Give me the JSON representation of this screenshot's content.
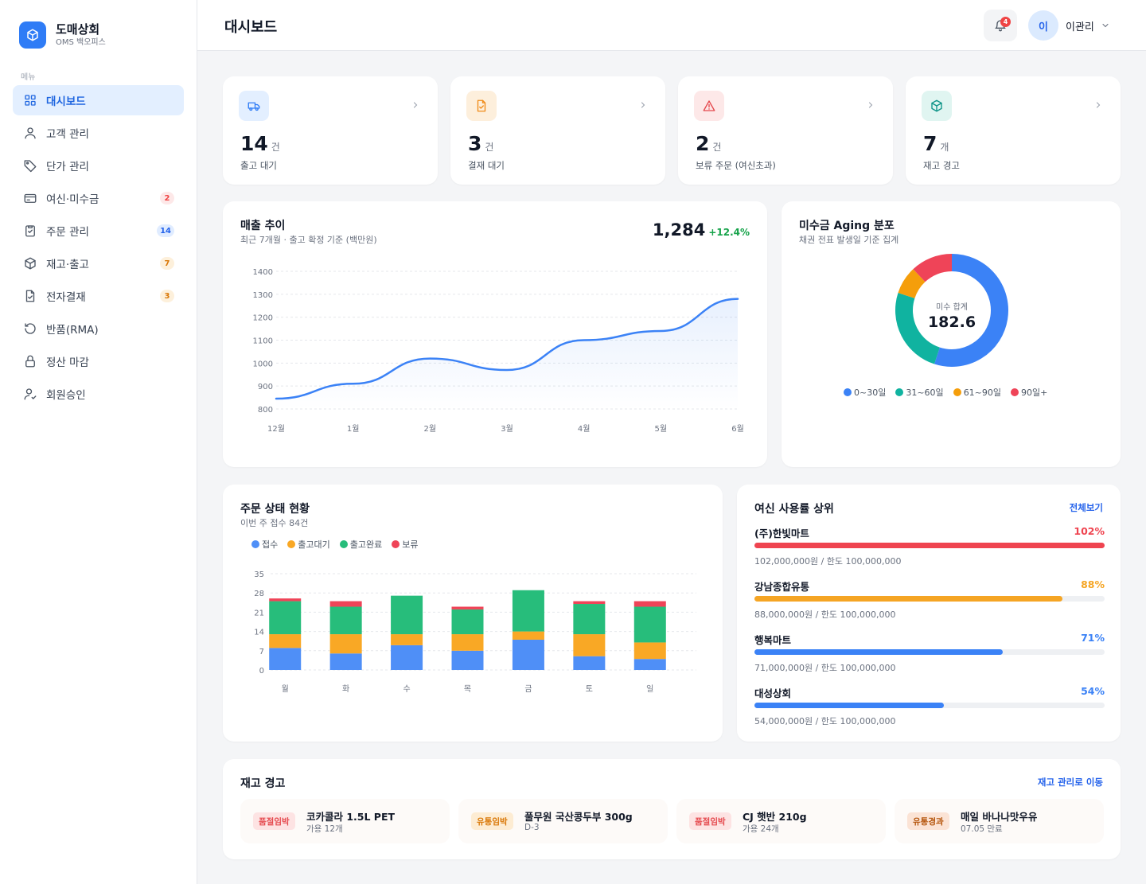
{
  "brand": {
    "name": "도매상회",
    "sub": "OMS 백오피스"
  },
  "sidebar": {
    "menu_label": "메뉴",
    "items": [
      {
        "label": "대시보드",
        "icon": "grid-icon",
        "active": true,
        "badge": ""
      },
      {
        "label": "고객 관리",
        "icon": "user-icon",
        "badge": ""
      },
      {
        "label": "단가 관리",
        "icon": "tag-icon",
        "badge": ""
      },
      {
        "label": "여신·미수금",
        "icon": "card-icon",
        "badge": "2",
        "badge_color": "#ef4444",
        "badge_bg": "#fde8e8"
      },
      {
        "label": "주문 관리",
        "icon": "clipboard-check-icon",
        "badge": "14",
        "badge_color": "#2563eb",
        "badge_bg": "#e0ecff"
      },
      {
        "label": "재고·출고",
        "icon": "box-icon",
        "badge": "7",
        "badge_color": "#d97706",
        "badge_bg": "#fdf0db"
      },
      {
        "label": "전자결재",
        "icon": "document-check-icon",
        "badge": "3",
        "badge_color": "#d97706",
        "badge_bg": "#fdf0db"
      },
      {
        "label": "반품(RMA)",
        "icon": "rotate-icon",
        "badge": ""
      },
      {
        "label": "정산 마감",
        "icon": "lock-icon",
        "badge": ""
      },
      {
        "label": "회원승인",
        "icon": "user-check-icon",
        "badge": ""
      }
    ]
  },
  "header": {
    "title": "대시보드",
    "notification_count": "4",
    "user_initial": "이",
    "user_name": "이관리"
  },
  "stats": [
    {
      "value": "14",
      "unit": "건",
      "label": "출고 대기",
      "icon": "truck-icon",
      "color": "#2f7cf6",
      "bg": "#e3efff"
    },
    {
      "value": "3",
      "unit": "건",
      "label": "결재 대기",
      "icon": "document-check-icon",
      "color": "#f08c1a",
      "bg": "#fdefdc"
    },
    {
      "value": "2",
      "unit": "건",
      "label": "보류 주문 (여신초과)",
      "icon": "warning-icon",
      "color": "#e5484d",
      "bg": "#fde8e8"
    },
    {
      "value": "7",
      "unit": "개",
      "label": "재고 경고",
      "icon": "box-icon",
      "color": "#0d9488",
      "bg": "#e0f5f1"
    }
  ],
  "sales": {
    "title": "매출 추이",
    "sub": "최근 7개월 · 출고 확정 기준 (백만원)",
    "total": "1,284",
    "change": "+12.4%",
    "change_color": "#16a34a"
  },
  "aging": {
    "title": "미수금 Aging 분포",
    "sub": "채권 전표 발생일 기준 집계",
    "center_label": "미수 합계",
    "center_value": "182.6"
  },
  "orders": {
    "title": "주문 상태 현황",
    "sub": "이번 주 접수 84건"
  },
  "credit": {
    "title": "여신 사용률 상위",
    "link": "전체보기",
    "rows": [
      {
        "name": "(주)한빛마트",
        "pct": "102%",
        "ratio": 1.0,
        "detail": "102,000,000원 / 한도 100,000,000",
        "color": "#ef4450"
      },
      {
        "name": "강남종합유통",
        "pct": "88%",
        "ratio": 0.88,
        "detail": "88,000,000원 / 한도 100,000,000",
        "color": "#f5a524"
      },
      {
        "name": "행복마트",
        "pct": "71%",
        "ratio": 0.71,
        "detail": "71,000,000원 / 한도 100,000,000",
        "color": "#3b82f6"
      },
      {
        "name": "대성상회",
        "pct": "54%",
        "ratio": 0.54,
        "detail": "54,000,000원 / 한도 100,000,000",
        "color": "#3b82f6"
      }
    ]
  },
  "stock": {
    "title": "재고 경고",
    "link": "재고 관리로 이동",
    "items": [
      {
        "tag": "품절임박",
        "tag_color": "#e5484d",
        "tag_bg": "#fde3e3",
        "name": "코카콜라 1.5L PET",
        "detail": "가용 12개"
      },
      {
        "tag": "유통임박",
        "tag_color": "#d97706",
        "tag_bg": "#fdecd3",
        "name": "풀무원 국산콩두부 300g",
        "detail": "D-3"
      },
      {
        "tag": "품절임박",
        "tag_color": "#e5484d",
        "tag_bg": "#fde3e3",
        "name": "CJ 햇반 210g",
        "detail": "가용 24개"
      },
      {
        "tag": "유통경과",
        "tag_color": "#b45309",
        "tag_bg": "#fbe3d5",
        "name": "매일 바나나맛우유",
        "detail": "07.05 만료"
      }
    ]
  },
  "chart_data": [
    {
      "type": "line",
      "title": "매출 추이",
      "categories": [
        "12월",
        "1월",
        "2월",
        "3월",
        "4월",
        "5월",
        "6월"
      ],
      "series": [
        {
          "values": [
            845,
            910,
            1020,
            970,
            1100,
            1140,
            1280
          ]
        }
      ],
      "ylim": [
        800,
        1400
      ],
      "yticks": [
        800,
        900,
        1000,
        1100,
        1200,
        1300,
        1400
      ],
      "grid": true,
      "color": "#3b82f6"
    },
    {
      "type": "pie",
      "title": "미수금 Aging 분포",
      "categories": [
        "0~30일",
        "31~60일",
        "61~90일",
        "90일+"
      ],
      "values": [
        55,
        25,
        8,
        12
      ],
      "colors": [
        "#3b82f6",
        "#10b3a0",
        "#f59e0b",
        "#ef4458"
      ],
      "legend": "bottom"
    },
    {
      "type": "bar",
      "stacked": true,
      "title": "주문 상태 현황",
      "categories": [
        "월",
        "화",
        "수",
        "목",
        "금",
        "토",
        "일"
      ],
      "series": [
        {
          "name": "접수",
          "values": [
            8,
            6,
            9,
            7,
            11,
            5,
            4
          ],
          "color": "#4f8ff7"
        },
        {
          "name": "출고대기",
          "values": [
            5,
            7,
            4,
            6,
            3,
            8,
            6
          ],
          "color": "#f9a825"
        },
        {
          "name": "출고완료",
          "values": [
            12,
            10,
            14,
            9,
            15,
            11,
            13
          ],
          "color": "#27bd7b"
        },
        {
          "name": "보류",
          "values": [
            1,
            2,
            0,
            1,
            0,
            1,
            2
          ],
          "color": "#ef4458"
        }
      ],
      "ylim": [
        0,
        35
      ],
      "yticks": [
        0,
        7,
        14,
        21,
        28,
        35
      ],
      "legend": "top-left"
    }
  ]
}
